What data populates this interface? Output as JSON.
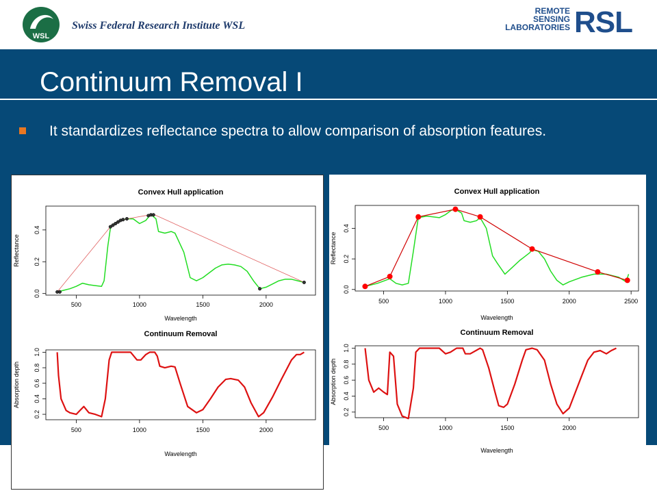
{
  "header": {
    "institute": "Swiss Federal  Research Institute WSL",
    "wsl_logo_text": "WSL",
    "rsl_lines": [
      "REMOTE",
      "SENSING",
      "LABORATORIES"
    ],
    "rsl_big": "RSL"
  },
  "slide": {
    "title": "Continuum Removal I",
    "bullet": "It standardizes reflectance spectra to allow comparison of absorption features."
  },
  "colors": {
    "band": "#064977",
    "bullet": "#e87722",
    "green_spectrum": "#22dd22",
    "hull_left": "#e06060",
    "hull_right": "#d00000",
    "cr_line": "#dd1111"
  },
  "chart_data": [
    {
      "type": "line",
      "title": "Convex Hull application",
      "xlabel": "Wavelength",
      "ylabel": "Reflectance",
      "xlim": [
        260,
        2390
      ],
      "ylim": [
        -0.01,
        0.55
      ],
      "xticks": [
        500,
        1000,
        1500,
        2000
      ],
      "yticks": [
        0.0,
        0.2,
        0.4
      ],
      "ytick_labels": [
        "0.0",
        "0.2",
        "0.4"
      ],
      "series": [
        {
          "role": "spectrum",
          "color": "#22dd22",
          "points": [
            [
              350,
              0.01
            ],
            [
              400,
              0.02
            ],
            [
              450,
              0.03
            ],
            [
              500,
              0.045
            ],
            [
              550,
              0.065
            ],
            [
              600,
              0.055
            ],
            [
              650,
              0.05
            ],
            [
              700,
              0.045
            ],
            [
              720,
              0.08
            ],
            [
              750,
              0.3
            ],
            [
              770,
              0.41
            ],
            [
              800,
              0.44
            ],
            [
              850,
              0.46
            ],
            [
              900,
              0.47
            ],
            [
              950,
              0.47
            ],
            [
              1000,
              0.44
            ],
            [
              1050,
              0.46
            ],
            [
              1080,
              0.49
            ],
            [
              1100,
              0.49
            ],
            [
              1130,
              0.47
            ],
            [
              1150,
              0.39
            ],
            [
              1200,
              0.38
            ],
            [
              1250,
              0.39
            ],
            [
              1280,
              0.38
            ],
            [
              1350,
              0.26
            ],
            [
              1400,
              0.1
            ],
            [
              1450,
              0.08
            ],
            [
              1500,
              0.1
            ],
            [
              1550,
              0.13
            ],
            [
              1600,
              0.16
            ],
            [
              1650,
              0.18
            ],
            [
              1700,
              0.185
            ],
            [
              1750,
              0.18
            ],
            [
              1800,
              0.17
            ],
            [
              1850,
              0.14
            ],
            [
              1900,
              0.08
            ],
            [
              1950,
              0.03
            ],
            [
              2000,
              0.04
            ],
            [
              2050,
              0.06
            ],
            [
              2100,
              0.08
            ],
            [
              2150,
              0.09
            ],
            [
              2200,
              0.09
            ],
            [
              2250,
              0.08
            ],
            [
              2300,
              0.07
            ]
          ]
        },
        {
          "role": "hull",
          "color": "#e06060",
          "points": [
            [
              350,
              0.01
            ],
            [
              770,
              0.42
            ],
            [
              800,
              0.44
            ],
            [
              850,
              0.46
            ],
            [
              900,
              0.47
            ],
            [
              1080,
              0.495
            ],
            [
              1120,
              0.495
            ],
            [
              2300,
              0.07
            ]
          ]
        }
      ],
      "hull_points": [
        [
          350,
          0.01
        ],
        [
          370,
          0.01
        ],
        [
          770,
          0.42
        ],
        [
          790,
          0.43
        ],
        [
          810,
          0.44
        ],
        [
          830,
          0.45
        ],
        [
          850,
          0.46
        ],
        [
          870,
          0.465
        ],
        [
          900,
          0.47
        ],
        [
          1070,
          0.49
        ],
        [
          1090,
          0.495
        ],
        [
          1110,
          0.495
        ],
        [
          1950,
          0.03
        ],
        [
          2300,
          0.07
        ]
      ]
    },
    {
      "type": "line",
      "title": "Convex Hull application",
      "xlabel": "Wavelength",
      "ylabel": "Reflectance",
      "xlim": [
        270,
        2560
      ],
      "ylim": [
        -0.01,
        0.55
      ],
      "xticks": [
        500,
        1000,
        1500,
        2000,
        2500
      ],
      "yticks": [
        0.0,
        0.2,
        0.4
      ],
      "ytick_labels": [
        "0.0",
        "0.2",
        "0.4"
      ],
      "series": [
        {
          "role": "spectrum",
          "color": "#22dd22",
          "points": [
            [
              350,
              0.02
            ],
            [
              450,
              0.04
            ],
            [
              550,
              0.07
            ],
            [
              600,
              0.04
            ],
            [
              650,
              0.03
            ],
            [
              700,
              0.04
            ],
            [
              740,
              0.25
            ],
            [
              780,
              0.47
            ],
            [
              850,
              0.48
            ],
            [
              950,
              0.47
            ],
            [
              1000,
              0.49
            ],
            [
              1050,
              0.52
            ],
            [
              1090,
              0.52
            ],
            [
              1130,
              0.5
            ],
            [
              1150,
              0.45
            ],
            [
              1200,
              0.44
            ],
            [
              1250,
              0.45
            ],
            [
              1280,
              0.47
            ],
            [
              1330,
              0.4
            ],
            [
              1380,
              0.22
            ],
            [
              1420,
              0.17
            ],
            [
              1480,
              0.1
            ],
            [
              1520,
              0.13
            ],
            [
              1600,
              0.19
            ],
            [
              1680,
              0.24
            ],
            [
              1700,
              0.26
            ],
            [
              1750,
              0.25
            ],
            [
              1800,
              0.2
            ],
            [
              1850,
              0.12
            ],
            [
              1900,
              0.06
            ],
            [
              1950,
              0.03
            ],
            [
              2000,
              0.05
            ],
            [
              2100,
              0.08
            ],
            [
              2200,
              0.1
            ],
            [
              2300,
              0.1
            ],
            [
              2400,
              0.08
            ],
            [
              2460,
              0.05
            ],
            [
              2480,
              0.1
            ]
          ]
        },
        {
          "role": "hull",
          "color": "#d00000",
          "points": [
            [
              350,
              0.02
            ],
            [
              550,
              0.085
            ],
            [
              780,
              0.475
            ],
            [
              1080,
              0.525
            ],
            [
              1280,
              0.475
            ],
            [
              1700,
              0.265
            ],
            [
              2230,
              0.115
            ],
            [
              2470,
              0.06
            ]
          ]
        }
      ]
    },
    {
      "type": "line",
      "title": "Continuum Removal",
      "xlabel": "Wavelength",
      "ylabel": "Absorption depth",
      "xlim": [
        260,
        2390
      ],
      "ylim": [
        0.13,
        1.03
      ],
      "xticks": [
        500,
        1000,
        1500,
        2000
      ],
      "yticks": [
        0.2,
        0.4,
        0.6,
        0.8,
        1.0
      ],
      "ytick_labels": [
        "0.2",
        "0.4",
        "0.6",
        "0.8",
        "1.0"
      ],
      "series": [
        {
          "role": "continuum-removed",
          "color": "#dd1111",
          "points": [
            [
              350,
              1.0
            ],
            [
              360,
              0.7
            ],
            [
              380,
              0.4
            ],
            [
              420,
              0.25
            ],
            [
              450,
              0.22
            ],
            [
              500,
              0.2
            ],
            [
              530,
              0.25
            ],
            [
              560,
              0.3
            ],
            [
              600,
              0.22
            ],
            [
              650,
              0.2
            ],
            [
              700,
              0.17
            ],
            [
              730,
              0.4
            ],
            [
              760,
              0.9
            ],
            [
              780,
              1.0
            ],
            [
              850,
              1.0
            ],
            [
              930,
              1.0
            ],
            [
              980,
              0.9
            ],
            [
              1010,
              0.9
            ],
            [
              1050,
              0.97
            ],
            [
              1080,
              1.0
            ],
            [
              1120,
              1.0
            ],
            [
              1140,
              0.95
            ],
            [
              1160,
              0.82
            ],
            [
              1200,
              0.8
            ],
            [
              1250,
              0.82
            ],
            [
              1280,
              0.81
            ],
            [
              1320,
              0.6
            ],
            [
              1380,
              0.3
            ],
            [
              1450,
              0.22
            ],
            [
              1500,
              0.26
            ],
            [
              1560,
              0.4
            ],
            [
              1620,
              0.55
            ],
            [
              1680,
              0.65
            ],
            [
              1720,
              0.66
            ],
            [
              1780,
              0.64
            ],
            [
              1830,
              0.55
            ],
            [
              1880,
              0.35
            ],
            [
              1940,
              0.17
            ],
            [
              1980,
              0.22
            ],
            [
              2050,
              0.42
            ],
            [
              2120,
              0.65
            ],
            [
              2200,
              0.9
            ],
            [
              2240,
              0.97
            ],
            [
              2270,
              0.97
            ],
            [
              2300,
              1.0
            ]
          ]
        }
      ]
    },
    {
      "type": "line",
      "title": "Continuum Removal",
      "xlabel": "Wavelength",
      "ylabel": "Absorption depth",
      "xlim": [
        270,
        2560
      ],
      "ylim": [
        0.13,
        1.03
      ],
      "xticks": [
        500,
        1000,
        1500,
        2000
      ],
      "yticks": [
        0.2,
        0.4,
        0.6,
        0.8,
        1.0
      ],
      "ytick_labels": [
        "0.2",
        "0.4",
        "0.6",
        "0.8",
        "1.0"
      ],
      "series": [
        {
          "role": "continuum-removed",
          "color": "#dd1111",
          "points": [
            [
              350,
              1.0
            ],
            [
              380,
              0.6
            ],
            [
              420,
              0.45
            ],
            [
              460,
              0.5
            ],
            [
              500,
              0.45
            ],
            [
              530,
              0.42
            ],
            [
              550,
              0.95
            ],
            [
              580,
              0.9
            ],
            [
              610,
              0.3
            ],
            [
              650,
              0.15
            ],
            [
              700,
              0.12
            ],
            [
              740,
              0.5
            ],
            [
              760,
              0.95
            ],
            [
              790,
              1.0
            ],
            [
              850,
              1.0
            ],
            [
              950,
              1.0
            ],
            [
              1000,
              0.93
            ],
            [
              1040,
              0.95
            ],
            [
              1090,
              1.0
            ],
            [
              1140,
              1.0
            ],
            [
              1160,
              0.93
            ],
            [
              1200,
              0.93
            ],
            [
              1280,
              1.0
            ],
            [
              1300,
              0.98
            ],
            [
              1350,
              0.75
            ],
            [
              1400,
              0.45
            ],
            [
              1430,
              0.28
            ],
            [
              1470,
              0.26
            ],
            [
              1500,
              0.3
            ],
            [
              1560,
              0.55
            ],
            [
              1620,
              0.85
            ],
            [
              1650,
              0.98
            ],
            [
              1700,
              1.0
            ],
            [
              1740,
              0.98
            ],
            [
              1800,
              0.85
            ],
            [
              1850,
              0.55
            ],
            [
              1900,
              0.3
            ],
            [
              1950,
              0.18
            ],
            [
              2000,
              0.25
            ],
            [
              2050,
              0.45
            ],
            [
              2100,
              0.65
            ],
            [
              2150,
              0.85
            ],
            [
              2200,
              0.95
            ],
            [
              2250,
              0.97
            ],
            [
              2300,
              0.93
            ],
            [
              2340,
              0.97
            ],
            [
              2380,
              1.0
            ]
          ]
        }
      ]
    }
  ]
}
